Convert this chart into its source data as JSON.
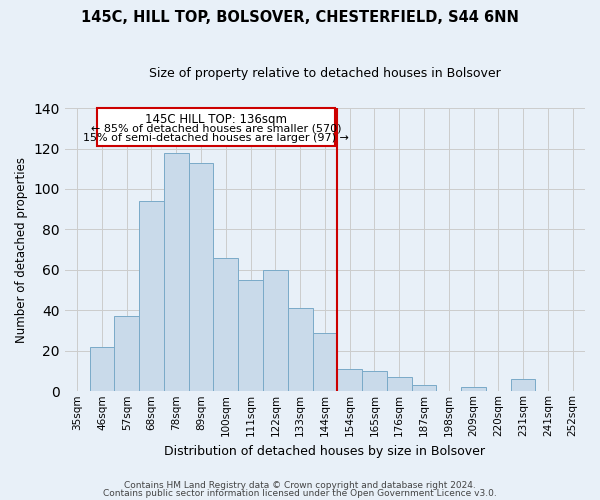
{
  "title": "145C, HILL TOP, BOLSOVER, CHESTERFIELD, S44 6NN",
  "subtitle": "Size of property relative to detached houses in Bolsover",
  "xlabel": "Distribution of detached houses by size in Bolsover",
  "ylabel": "Number of detached properties",
  "bar_labels": [
    "35sqm",
    "46sqm",
    "57sqm",
    "68sqm",
    "78sqm",
    "89sqm",
    "100sqm",
    "111sqm",
    "122sqm",
    "133sqm",
    "144sqm",
    "154sqm",
    "165sqm",
    "176sqm",
    "187sqm",
    "198sqm",
    "209sqm",
    "220sqm",
    "231sqm",
    "241sqm",
    "252sqm"
  ],
  "bar_values": [
    0,
    22,
    37,
    94,
    118,
    113,
    66,
    55,
    60,
    41,
    29,
    11,
    10,
    7,
    3,
    0,
    2,
    0,
    6,
    0,
    0
  ],
  "bar_color": "#c9daea",
  "bar_edge_color": "#7aaac8",
  "grid_color": "#cccccc",
  "background_color": "#e8f0f8",
  "vline_x_index": 10.5,
  "vline_color": "#cc0000",
  "annotation_title": "145C HILL TOP: 136sqm",
  "annotation_line1": "← 85% of detached houses are smaller (570)",
  "annotation_line2": "15% of semi-detached houses are larger (97) →",
  "annotation_box_edge_color": "#cc0000",
  "footer_line1": "Contains HM Land Registry data © Crown copyright and database right 2024.",
  "footer_line2": "Contains public sector information licensed under the Open Government Licence v3.0.",
  "ylim": [
    0,
    140
  ],
  "yticks": [
    0,
    20,
    40,
    60,
    80,
    100,
    120,
    140
  ],
  "title_fontsize": 10.5,
  "subtitle_fontsize": 9
}
